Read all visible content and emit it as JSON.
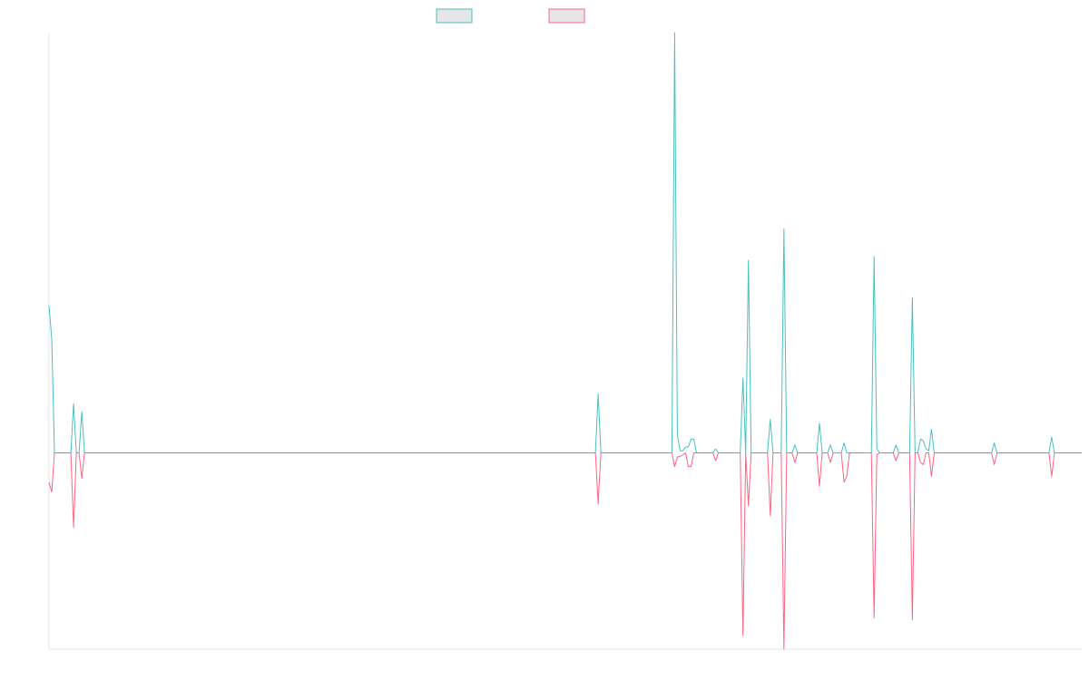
{
  "chart_data": {
    "type": "line",
    "title": "",
    "xlabel": "",
    "ylabel": "",
    "grid": false,
    "legend_position": "top-center",
    "series": [
      {
        "color": "#4bc0c0",
        "fill": "#e6e6e6",
        "points": [
          [
            0,
            0.75
          ],
          [
            1,
            0.58
          ],
          [
            2,
            0
          ],
          [
            3,
            0
          ],
          [
            4,
            0
          ],
          [
            5,
            0
          ],
          [
            6,
            0
          ],
          [
            7,
            0
          ],
          [
            8,
            0
          ],
          [
            9,
            0.25
          ],
          [
            10,
            0
          ],
          [
            11,
            0
          ],
          [
            12,
            0.21
          ],
          [
            13,
            0
          ],
          [
            200,
            0
          ],
          [
            201,
            0.3
          ],
          [
            202,
            0
          ],
          [
            228,
            0
          ],
          [
            229,
            2.14
          ],
          [
            230,
            0.09
          ],
          [
            231,
            0.01
          ],
          [
            232,
            0.01
          ],
          [
            233,
            0.03
          ],
          [
            234,
            0.03
          ],
          [
            235,
            0.07
          ],
          [
            236,
            0.07
          ],
          [
            237,
            0
          ],
          [
            243,
            0
          ],
          [
            244,
            0.02
          ],
          [
            245,
            0
          ],
          [
            253,
            0
          ],
          [
            254,
            0.38
          ],
          [
            255,
            0
          ],
          [
            256,
            0.98
          ],
          [
            257,
            0
          ],
          [
            263,
            0
          ],
          [
            264,
            0.17
          ],
          [
            265,
            0
          ],
          [
            268,
            0
          ],
          [
            269,
            1.14
          ],
          [
            270,
            0
          ],
          [
            272,
            0
          ],
          [
            273,
            0.04
          ],
          [
            274,
            0
          ],
          [
            281,
            0
          ],
          [
            282,
            0.15
          ],
          [
            283,
            0
          ],
          [
            285,
            0
          ],
          [
            286,
            0.04
          ],
          [
            287,
            0
          ],
          [
            290,
            0
          ],
          [
            291,
            0.05
          ],
          [
            292,
            0
          ],
          [
            301,
            0
          ],
          [
            302,
            1.0
          ],
          [
            303,
            0.02
          ],
          [
            304,
            0
          ],
          [
            305,
            0
          ],
          [
            306,
            0
          ],
          [
            309,
            0
          ],
          [
            310,
            0.04
          ],
          [
            311,
            0
          ],
          [
            315,
            0
          ],
          [
            316,
            0.79
          ],
          [
            317,
            0
          ],
          [
            318,
            0
          ],
          [
            319,
            0.07
          ],
          [
            320,
            0.06
          ],
          [
            321,
            0.02
          ],
          [
            322,
            0.01
          ],
          [
            323,
            0.12
          ],
          [
            324,
            0
          ],
          [
            325,
            0
          ],
          [
            326,
            0
          ],
          [
            327,
            0
          ],
          [
            328,
            0
          ],
          [
            329,
            0
          ],
          [
            330,
            0
          ],
          [
            331,
            0
          ],
          [
            332,
            0
          ],
          [
            345,
            0
          ],
          [
            346,
            0.05
          ],
          [
            347,
            0
          ],
          [
            366,
            0
          ],
          [
            367,
            0.08
          ],
          [
            368,
            0
          ],
          [
            378,
            0
          ]
        ]
      },
      {
        "color": "#ff6384",
        "fill": "#e6e6e6",
        "points": [
          [
            0,
            -0.15
          ],
          [
            1,
            -0.2
          ],
          [
            2,
            0
          ],
          [
            3,
            0
          ],
          [
            4,
            0
          ],
          [
            5,
            0
          ],
          [
            6,
            0
          ],
          [
            7,
            0
          ],
          [
            8,
            0
          ],
          [
            9,
            -0.38
          ],
          [
            10,
            0
          ],
          [
            11,
            0
          ],
          [
            12,
            -0.13
          ],
          [
            13,
            0
          ],
          [
            200,
            0
          ],
          [
            201,
            -0.26
          ],
          [
            202,
            0
          ],
          [
            228,
            0
          ],
          [
            229,
            -0.07
          ],
          [
            230,
            -0.02
          ],
          [
            231,
            -0.02
          ],
          [
            232,
            -0.01
          ],
          [
            233,
            0
          ],
          [
            234,
            -0.07
          ],
          [
            235,
            -0.07
          ],
          [
            236,
            0
          ],
          [
            237,
            0
          ],
          [
            243,
            0
          ],
          [
            244,
            -0.04
          ],
          [
            245,
            0
          ],
          [
            253,
            0
          ],
          [
            254,
            -0.93
          ],
          [
            255,
            0
          ],
          [
            256,
            -0.27
          ],
          [
            257,
            0
          ],
          [
            263,
            0
          ],
          [
            264,
            -0.32
          ],
          [
            265,
            0
          ],
          [
            268,
            0
          ],
          [
            269,
            -1.0
          ],
          [
            270,
            0
          ],
          [
            272,
            0
          ],
          [
            273,
            -0.05
          ],
          [
            274,
            0
          ],
          [
            281,
            0
          ],
          [
            282,
            -0.17
          ],
          [
            283,
            0
          ],
          [
            285,
            0
          ],
          [
            286,
            -0.05
          ],
          [
            287,
            0
          ],
          [
            290,
            0
          ],
          [
            291,
            -0.15
          ],
          [
            292,
            -0.12
          ],
          [
            293,
            0
          ],
          [
            301,
            0
          ],
          [
            302,
            -0.84
          ],
          [
            303,
            -0.01
          ],
          [
            304,
            0
          ],
          [
            305,
            0
          ],
          [
            306,
            0
          ],
          [
            309,
            0
          ],
          [
            310,
            -0.04
          ],
          [
            311,
            0
          ],
          [
            315,
            0
          ],
          [
            316,
            -0.85
          ],
          [
            317,
            0
          ],
          [
            318,
            0
          ],
          [
            319,
            -0.05
          ],
          [
            320,
            -0.06
          ],
          [
            321,
            0
          ],
          [
            322,
            0
          ],
          [
            323,
            -0.12
          ],
          [
            324,
            0
          ],
          [
            325,
            0
          ],
          [
            326,
            0
          ],
          [
            327,
            0
          ],
          [
            328,
            0
          ],
          [
            329,
            0
          ],
          [
            330,
            0
          ],
          [
            331,
            0
          ],
          [
            332,
            0
          ],
          [
            345,
            0
          ],
          [
            346,
            -0.06
          ],
          [
            347,
            0
          ],
          [
            366,
            0
          ],
          [
            367,
            -0.12
          ],
          [
            368,
            0
          ],
          [
            378,
            0
          ]
        ]
      }
    ],
    "xlim": [
      0,
      378
    ],
    "ylim": [
      -1.0,
      2.14
    ],
    "axis_color": "#e5e5e5"
  }
}
